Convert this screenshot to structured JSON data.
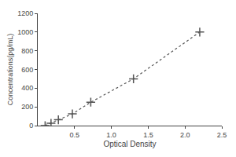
{
  "chart_data": {
    "type": "line",
    "x": [
      0.1,
      0.18,
      0.28,
      0.47,
      0.72,
      1.3,
      2.2
    ],
    "values": [
      0,
      25,
      62,
      125,
      250,
      500,
      1000
    ],
    "xlabel": "Optical Density",
    "ylabel": "Concentrations(pg/mL)",
    "xlim": [
      0,
      2.5
    ],
    "ylim": [
      0,
      1200
    ],
    "xticks": [
      0.5,
      {
        "value": 1.0,
        "label": "1.0"
      },
      1.5,
      {
        "value": 2.0,
        "label": "2.0"
      },
      2.5
    ],
    "yticks": [
      0,
      200,
      400,
      600,
      800,
      1000,
      1200
    ],
    "color": "#555555",
    "marker": "+",
    "line_style": "dotted",
    "grid": false
  }
}
